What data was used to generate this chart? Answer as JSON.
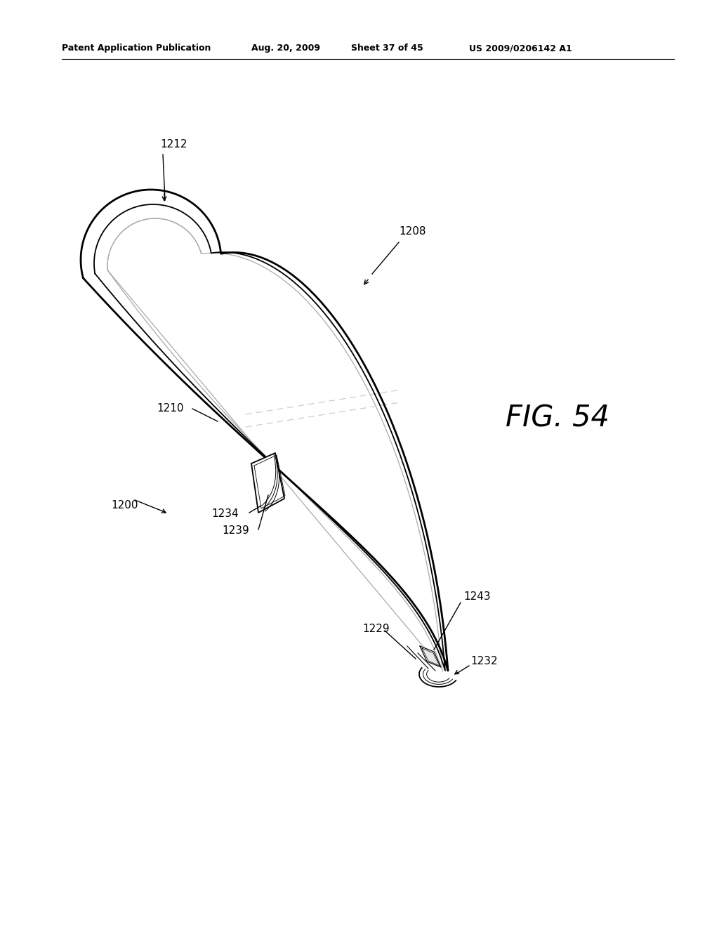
{
  "background_color": "#ffffff",
  "header_left": "Patent Application Publication",
  "header_mid": "Aug. 20, 2009  Sheet 37 of 45",
  "header_right": "US 2009/0206142 A1",
  "fig_label": "FIG. 54",
  "lw_outer": 2.0,
  "lw_inner": 1.3,
  "lw_gray": 0.9,
  "lw_thin": 0.8,
  "color_gray": "#aaaaaa",
  "color_lgray": "#cccccc"
}
